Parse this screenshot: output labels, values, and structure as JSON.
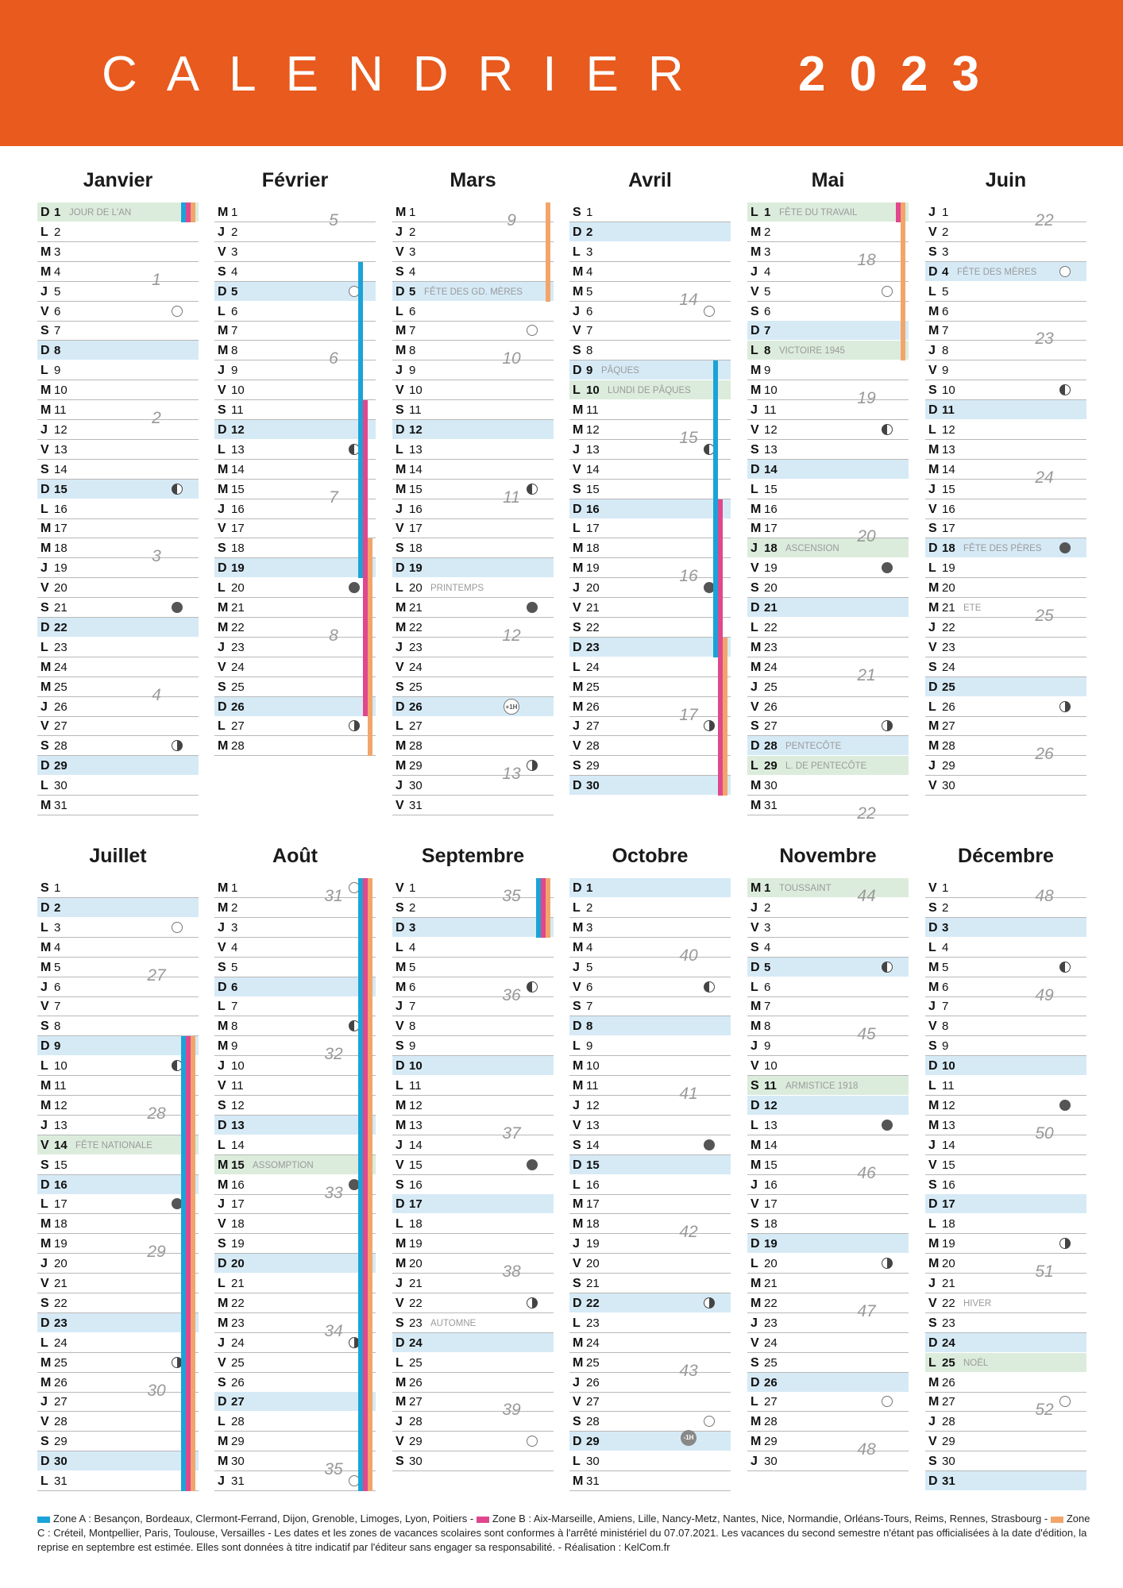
{
  "header": {
    "title": "CALENDRIER",
    "year": "2023"
  },
  "zones": {
    "a": {
      "color": "#1ba3d8",
      "label": "Zone A : Besançon, Bordeaux, Clermont-Ferrand, Dijon, Grenoble, Limoges, Lyon, Poitiers"
    },
    "b": {
      "color": "#e0478d",
      "label": "Zone B : Aix-Marseille, Amiens, Lille, Nancy-Metz, Nantes, Nice, Normandie, Orléans-Tours, Reims, Rennes, Strasbourg"
    },
    "c": {
      "color": "#f2a56b",
      "label": "Zone C : Créteil, Montpellier, Paris, Toulouse, Versailles - Les dates et les zones de vacances scolaires sont conformes à l'arrêté ministériel du 07.07.2021. Les vacances du second semestre n'étant pas officialisées à la date d'édition, la reprise en septembre est estimée. Elles sont données à titre indicatif par l'éditeur sans engager sa responsabilité. - Réalisation : KelCom.fr"
    }
  },
  "legend_separator": "-",
  "dst": {
    "plus": "+1H",
    "minus": "-1H"
  },
  "months": [
    {
      "name": "Janvier",
      "startDay": 0,
      "days": 31,
      "holidays": {
        "1": "JOUR DE L'AN"
      },
      "moons": {
        "6": "full",
        "15": "last",
        "21": "new",
        "28": "first"
      },
      "weeks": [
        {
          "n": "1",
          "day": 4
        },
        {
          "n": "2",
          "day": 11
        },
        {
          "n": "3",
          "day": 18
        },
        {
          "n": "4",
          "day": 25
        }
      ],
      "vacations": {
        "a": [
          [
            1,
            1
          ]
        ],
        "b": [
          [
            1,
            1
          ]
        ],
        "c": [
          [
            1,
            1
          ]
        ]
      }
    },
    {
      "name": "Février",
      "startDay": 3,
      "days": 28,
      "holidays": {},
      "moons": {
        "5": "full",
        "13": "last",
        "20": "new",
        "27": "first"
      },
      "weeks": [
        {
          "n": "5",
          "day": 1
        },
        {
          "n": "6",
          "day": 8
        },
        {
          "n": "7",
          "day": 15
        },
        {
          "n": "8",
          "day": 22
        }
      ],
      "vacations": {
        "a": [
          [
            4,
            19
          ]
        ],
        "b": [
          [
            11,
            26
          ]
        ],
        "c": [
          [
            18,
            28
          ]
        ]
      }
    },
    {
      "name": "Mars",
      "startDay": 3,
      "days": 31,
      "holidays": {},
      "events": {
        "5": "FÊTE DES GD. MÈRES",
        "20": "PRINTEMPS"
      },
      "moons": {
        "7": "full",
        "15": "last",
        "21": "new",
        "29": "first"
      },
      "weeks": [
        {
          "n": "9",
          "day": 1
        },
        {
          "n": "10",
          "day": 8
        },
        {
          "n": "11",
          "day": 15
        },
        {
          "n": "12",
          "day": 22
        },
        {
          "n": "13",
          "day": 29
        }
      ],
      "dst": [
        {
          "day": 26,
          "type": "plus"
        }
      ],
      "vacations": {
        "c": [
          [
            1,
            5
          ]
        ]
      }
    },
    {
      "name": "Avril",
      "startDay": 6,
      "days": 30,
      "holidays": {
        "10": "LUNDI DE PÂQUES"
      },
      "events": {
        "9": "PÂQUES"
      },
      "moons": {
        "6": "full",
        "13": "last",
        "20": "new",
        "27": "first"
      },
      "weeks": [
        {
          "n": "14",
          "day": 5
        },
        {
          "n": "15",
          "day": 12
        },
        {
          "n": "16",
          "day": 19
        },
        {
          "n": "17",
          "day": 26
        }
      ],
      "vacations": {
        "a": [
          [
            9,
            23
          ]
        ],
        "b": [
          [
            16,
            30
          ]
        ],
        "c": [
          [
            23,
            30
          ]
        ]
      }
    },
    {
      "name": "Mai",
      "startDay": 1,
      "days": 31,
      "holidays": {
        "1": "FÊTE DU TRAVAIL",
        "8": "VICTOIRE 1945",
        "18": "ASCENSION",
        "29": "L. DE PENTECÔTE"
      },
      "events": {
        "28": "PENTECÔTE"
      },
      "moons": {
        "5": "full",
        "12": "last",
        "19": "new",
        "27": "first"
      },
      "weeks": [
        {
          "n": "18",
          "day": 3
        },
        {
          "n": "19",
          "day": 10
        },
        {
          "n": "20",
          "day": 17
        },
        {
          "n": "21",
          "day": 24
        },
        {
          "n": "22",
          "day": 31
        }
      ],
      "vacations": {
        "b": [
          [
            1,
            1
          ]
        ],
        "c": [
          [
            1,
            8
          ]
        ]
      }
    },
    {
      "name": "Juin",
      "startDay": 4,
      "days": 30,
      "holidays": {},
      "events": {
        "4": "FÊTE DES MÈRES",
        "18": "FÊTE DES PÈRES",
        "21": "ETE"
      },
      "moons": {
        "4": "full",
        "10": "last",
        "18": "new",
        "26": "first"
      },
      "weeks": [
        {
          "n": "22",
          "day": 1
        },
        {
          "n": "23",
          "day": 7
        },
        {
          "n": "24",
          "day": 14
        },
        {
          "n": "25",
          "day": 21
        },
        {
          "n": "26",
          "day": 28
        }
      ],
      "vacations": {}
    },
    {
      "name": "Juillet",
      "startDay": 6,
      "days": 31,
      "holidays": {
        "14": "FÊTE NATIONALE"
      },
      "moons": {
        "3": "full",
        "10": "last",
        "17": "new",
        "25": "first"
      },
      "weeks": [
        {
          "n": "27",
          "day": 5
        },
        {
          "n": "28",
          "day": 12
        },
        {
          "n": "29",
          "day": 19
        },
        {
          "n": "30",
          "day": 26
        }
      ],
      "vacations": {
        "a": [
          [
            9,
            31
          ]
        ],
        "b": [
          [
            9,
            31
          ]
        ],
        "c": [
          [
            9,
            31
          ]
        ]
      }
    },
    {
      "name": "Août",
      "startDay": 2,
      "days": 31,
      "holidays": {
        "15": "ASSOMPTION"
      },
      "moons": {
        "1": "full",
        "8": "last",
        "16": "new",
        "24": "first",
        "31": "full"
      },
      "weeks": [
        {
          "n": "31",
          "day": 1
        },
        {
          "n": "32",
          "day": 9
        },
        {
          "n": "33",
          "day": 16
        },
        {
          "n": "34",
          "day": 23
        },
        {
          "n": "35",
          "day": 30
        }
      ],
      "vacations": {
        "a": [
          [
            1,
            31
          ]
        ],
        "b": [
          [
            1,
            31
          ]
        ],
        "c": [
          [
            1,
            31
          ]
        ]
      }
    },
    {
      "name": "Septembre",
      "startDay": 5,
      "days": 30,
      "holidays": {},
      "events": {
        "23": "AUTOMNE"
      },
      "moons": {
        "6": "last",
        "15": "new",
        "22": "first",
        "29": "full"
      },
      "weeks": [
        {
          "n": "35",
          "day": 1
        },
        {
          "n": "36",
          "day": 6
        },
        {
          "n": "37",
          "day": 13
        },
        {
          "n": "38",
          "day": 20
        },
        {
          "n": "39",
          "day": 27
        }
      ],
      "vacations": {
        "a": [
          [
            1,
            3
          ]
        ],
        "b": [
          [
            1,
            3
          ]
        ],
        "c": [
          [
            1,
            3
          ]
        ]
      }
    },
    {
      "name": "Octobre",
      "startDay": 0,
      "days": 31,
      "holidays": {},
      "moons": {
        "6": "last",
        "14": "new",
        "22": "first",
        "28": "full"
      },
      "weeks": [
        {
          "n": "40",
          "day": 4
        },
        {
          "n": "41",
          "day": 11
        },
        {
          "n": "42",
          "day": 18
        },
        {
          "n": "43",
          "day": 25
        }
      ],
      "dst": [
        {
          "day": 29,
          "type": "minus"
        }
      ],
      "vacations": {}
    },
    {
      "name": "Novembre",
      "startDay": 3,
      "days": 30,
      "holidays": {
        "1": "TOUSSAINT",
        "11": "ARMISTICE 1918"
      },
      "moons": {
        "5": "last",
        "13": "new",
        "20": "first",
        "27": "full"
      },
      "weeks": [
        {
          "n": "44",
          "day": 1
        },
        {
          "n": "45",
          "day": 8
        },
        {
          "n": "46",
          "day": 15
        },
        {
          "n": "47",
          "day": 22
        },
        {
          "n": "48",
          "day": 29
        }
      ],
      "vacations": {}
    },
    {
      "name": "Décembre",
      "startDay": 5,
      "days": 31,
      "holidays": {
        "25": "NOËL"
      },
      "events": {
        "22": "HIVER"
      },
      "moons": {
        "5": "last",
        "12": "new",
        "19": "first",
        "27": "full"
      },
      "weeks": [
        {
          "n": "48",
          "day": 1
        },
        {
          "n": "49",
          "day": 6
        },
        {
          "n": "50",
          "day": 13
        },
        {
          "n": "51",
          "day": 20
        },
        {
          "n": "52",
          "day": 27
        }
      ],
      "vacations": {}
    }
  ],
  "dayLetters": [
    "D",
    "L",
    "M",
    "M",
    "J",
    "V",
    "S"
  ]
}
